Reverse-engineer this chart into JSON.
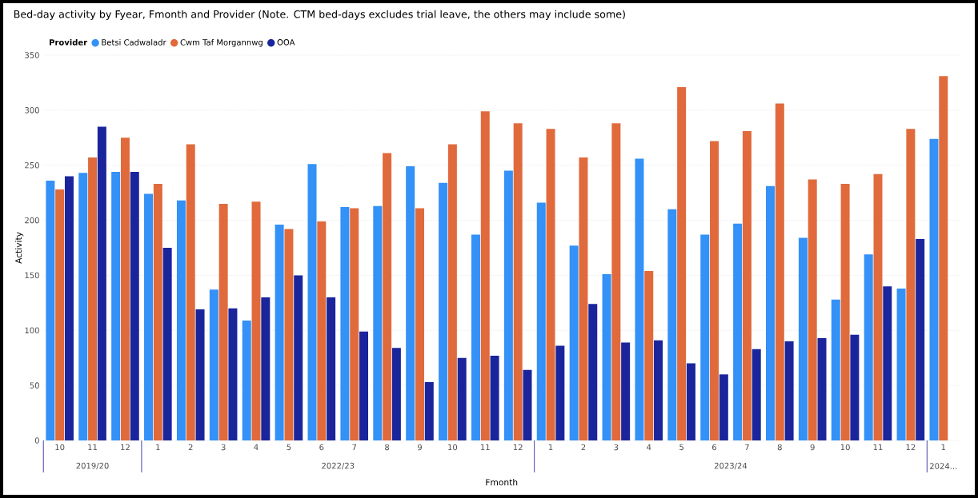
{
  "chart_data": {
    "type": "bar",
    "title": "Bed-day activity by Fyear, Fmonth and Provider (Note. CTM bed-days excludes trial leave, the others may include some)",
    "xlabel": "Fmonth",
    "ylabel": "Activity",
    "legend_title": "Provider",
    "categories": [
      "10",
      "11",
      "12",
      "1",
      "2",
      "3",
      "4",
      "5",
      "6",
      "7",
      "8",
      "9",
      "10",
      "11",
      "12",
      "1",
      "2",
      "3",
      "4",
      "5",
      "6",
      "7",
      "8",
      "9",
      "10",
      "11",
      "12",
      "1"
    ],
    "annotations": [
      "2019/20",
      "2022/23",
      "2023/24",
      "2024..."
    ],
    "series": [
      {
        "name": "Betsi Cadwaladr",
        "color": "#3391f7",
        "values": [
          236,
          243,
          244,
          224,
          218,
          137,
          109,
          196,
          251,
          212,
          213,
          249,
          234,
          187,
          245,
          216,
          177,
          151,
          256,
          210,
          187,
          197,
          231,
          184,
          128,
          169,
          138,
          274
        ]
      },
      {
        "name": "Cwm Taf Morgannwg",
        "color": "#e06a3c",
        "values": [
          228,
          257,
          275,
          233,
          269,
          215,
          217,
          192,
          199,
          211,
          261,
          211,
          269,
          299,
          288,
          283,
          257,
          288,
          154,
          321,
          272,
          281,
          306,
          237,
          233,
          242,
          283,
          331
        ]
      },
      {
        "name": "OOA",
        "color": "#1a259c",
        "values": [
          240,
          285,
          244,
          175,
          119,
          120,
          130,
          150,
          130,
          99,
          84,
          53,
          75,
          77,
          64,
          86,
          124,
          89,
          91,
          70,
          60,
          83,
          90,
          93,
          96,
          140,
          183,
          null
        ]
      }
    ],
    "ylim": [
      0,
      350
    ],
    "yticks": [
      0,
      50,
      100,
      150,
      200,
      250,
      300,
      350
    ],
    "grid": "y",
    "legend": "top left"
  }
}
